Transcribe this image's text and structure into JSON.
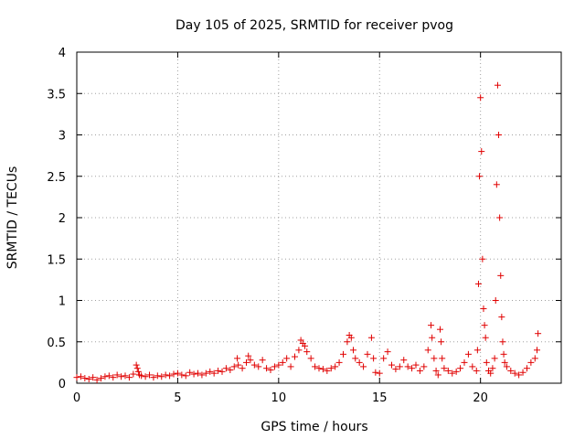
{
  "chart_data": {
    "type": "scatter",
    "title": "Day 105 of 2025, SRMTID for receiver pvog",
    "xlabel": "GPS time / hours",
    "ylabel": "SRMTID / TECUs",
    "xlim": [
      0,
      24
    ],
    "ylim": [
      0,
      4
    ],
    "xticks": [
      0,
      5,
      10,
      15,
      20
    ],
    "yticks": [
      0,
      0.5,
      1,
      1.5,
      2,
      2.5,
      3,
      3.5,
      4
    ],
    "xtick_labels": [
      "0",
      "5",
      "10",
      "15",
      "20"
    ],
    "ytick_labels": [
      "0",
      "0.5",
      "1",
      "1.5",
      "2",
      "2.5",
      "3",
      "3.5",
      "4"
    ],
    "grid": true,
    "marker": "+",
    "color": "#e00000",
    "series": [
      {
        "name": "pvog",
        "x": [
          0.0,
          0.2,
          0.4,
          0.6,
          0.8,
          1.0,
          1.2,
          1.4,
          1.6,
          1.8,
          2.0,
          2.2,
          2.4,
          2.6,
          2.8,
          2.95,
          3.0,
          3.05,
          3.1,
          3.2,
          3.4,
          3.6,
          3.8,
          4.0,
          4.2,
          4.4,
          4.6,
          4.8,
          5.0,
          5.2,
          5.4,
          5.6,
          5.8,
          6.0,
          6.2,
          6.4,
          6.6,
          6.8,
          7.0,
          7.2,
          7.4,
          7.6,
          7.8,
          7.95,
          8.0,
          8.2,
          8.4,
          8.5,
          8.6,
          8.8,
          9.0,
          9.2,
          9.4,
          9.6,
          9.8,
          10.0,
          10.2,
          10.4,
          10.6,
          10.8,
          11.0,
          11.1,
          11.2,
          11.3,
          11.4,
          11.6,
          11.8,
          12.0,
          12.2,
          12.4,
          12.6,
          12.8,
          13.0,
          13.2,
          13.4,
          13.5,
          13.6,
          13.7,
          13.8,
          14.0,
          14.2,
          14.4,
          14.6,
          14.7,
          14.8,
          15.0,
          15.2,
          15.4,
          15.6,
          15.8,
          16.0,
          16.2,
          16.4,
          16.6,
          16.8,
          17.0,
          17.2,
          17.4,
          17.55,
          17.6,
          17.7,
          17.8,
          17.9,
          18.0,
          18.05,
          18.1,
          18.2,
          18.4,
          18.6,
          18.8,
          19.0,
          19.2,
          19.4,
          19.6,
          19.8,
          19.85,
          19.9,
          19.95,
          20.0,
          20.05,
          20.1,
          20.15,
          20.2,
          20.25,
          20.3,
          20.4,
          20.5,
          20.6,
          20.7,
          20.75,
          20.8,
          20.85,
          20.9,
          20.95,
          21.0,
          21.05,
          21.1,
          21.15,
          21.2,
          21.3,
          21.5,
          21.7,
          21.9,
          22.1,
          22.3,
          22.5,
          22.7,
          22.8,
          22.85
        ],
        "y": [
          0.07,
          0.08,
          0.06,
          0.05,
          0.07,
          0.04,
          0.06,
          0.08,
          0.09,
          0.07,
          0.1,
          0.08,
          0.09,
          0.07,
          0.11,
          0.22,
          0.18,
          0.14,
          0.1,
          0.09,
          0.08,
          0.1,
          0.07,
          0.09,
          0.08,
          0.1,
          0.09,
          0.11,
          0.12,
          0.1,
          0.09,
          0.13,
          0.11,
          0.12,
          0.1,
          0.12,
          0.14,
          0.12,
          0.15,
          0.14,
          0.18,
          0.16,
          0.2,
          0.3,
          0.22,
          0.18,
          0.25,
          0.33,
          0.28,
          0.22,
          0.2,
          0.28,
          0.18,
          0.16,
          0.2,
          0.22,
          0.25,
          0.3,
          0.2,
          0.32,
          0.4,
          0.52,
          0.48,
          0.45,
          0.38,
          0.3,
          0.2,
          0.18,
          0.17,
          0.15,
          0.18,
          0.2,
          0.25,
          0.35,
          0.5,
          0.58,
          0.55,
          0.4,
          0.3,
          0.25,
          0.2,
          0.35,
          0.55,
          0.3,
          0.13,
          0.12,
          0.3,
          0.38,
          0.22,
          0.17,
          0.2,
          0.28,
          0.2,
          0.18,
          0.22,
          0.15,
          0.2,
          0.4,
          0.7,
          0.55,
          0.3,
          0.15,
          0.1,
          0.65,
          0.5,
          0.3,
          0.18,
          0.15,
          0.12,
          0.14,
          0.18,
          0.25,
          0.35,
          0.2,
          0.15,
          0.4,
          1.2,
          2.5,
          3.45,
          2.8,
          1.5,
          0.9,
          0.7,
          0.55,
          0.25,
          0.15,
          0.12,
          0.18,
          0.3,
          1.0,
          2.4,
          3.6,
          3.0,
          2.0,
          1.3,
          0.8,
          0.5,
          0.35,
          0.25,
          0.2,
          0.15,
          0.12,
          0.1,
          0.13,
          0.18,
          0.25,
          0.3,
          0.4,
          0.6
        ]
      }
    ]
  }
}
